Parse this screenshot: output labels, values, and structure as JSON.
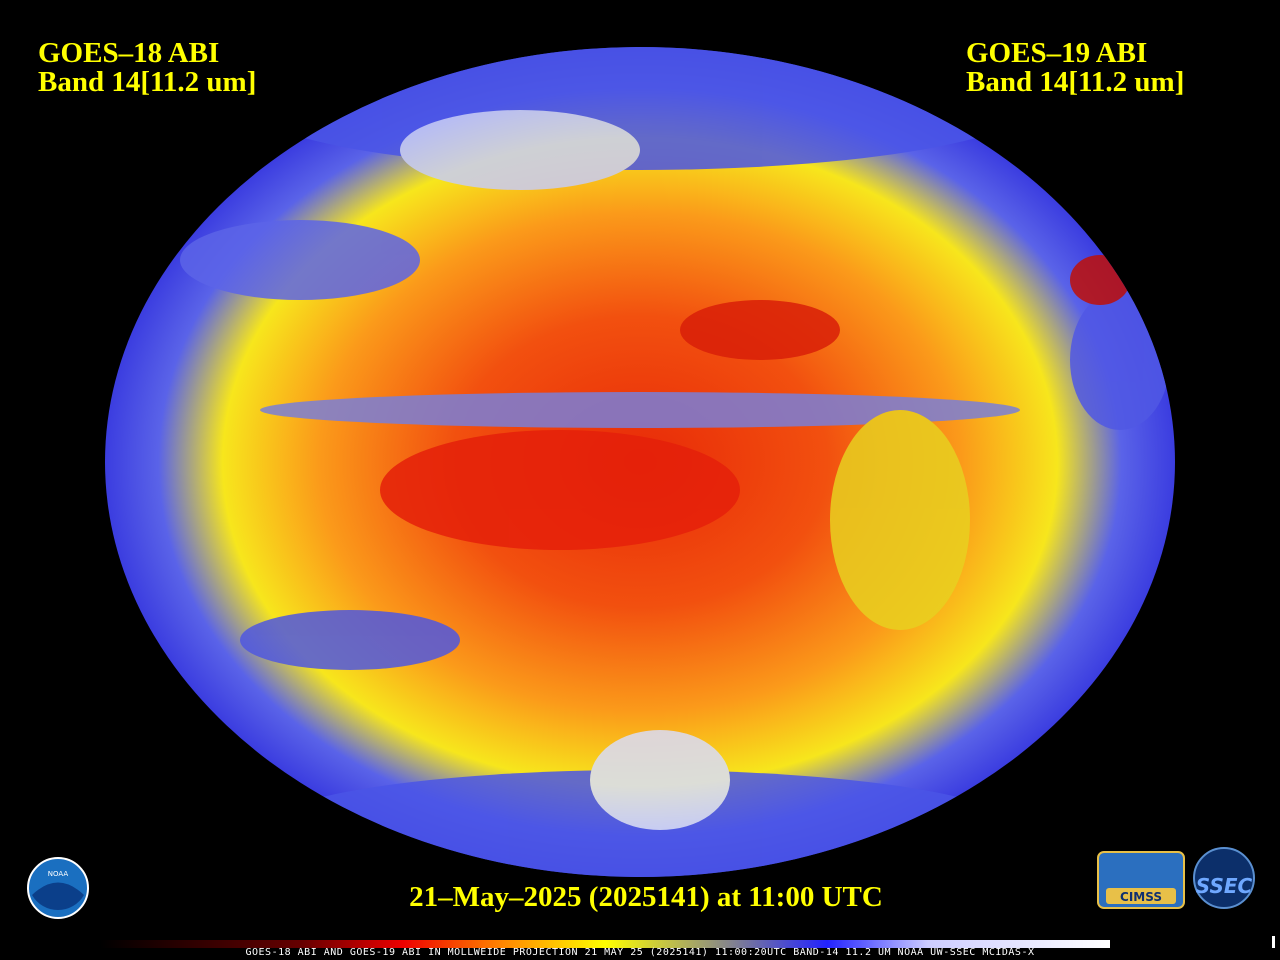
{
  "header": {
    "left": {
      "satellite": "GOES–18 ABI",
      "band": "Band 14[11.2 um]"
    },
    "right": {
      "satellite": "GOES–19 ABI",
      "band": "Band 14[11.2 um]"
    }
  },
  "date_caption": "21–May–2025 (2025141) at 11:00 UTC",
  "footer_text": "GOES-18 ABI AND GOES-19 ABI IN MOLLWEIDE PROJECTION 21 MAY 25 (2025141) 11:00:20UTC BAND-14 11.2 UM NOAA UW-SSEC MCIDAS-X",
  "logos": {
    "noaa": "NOAA",
    "cimss": "CIMSS",
    "ssec": "SSEC"
  }
}
